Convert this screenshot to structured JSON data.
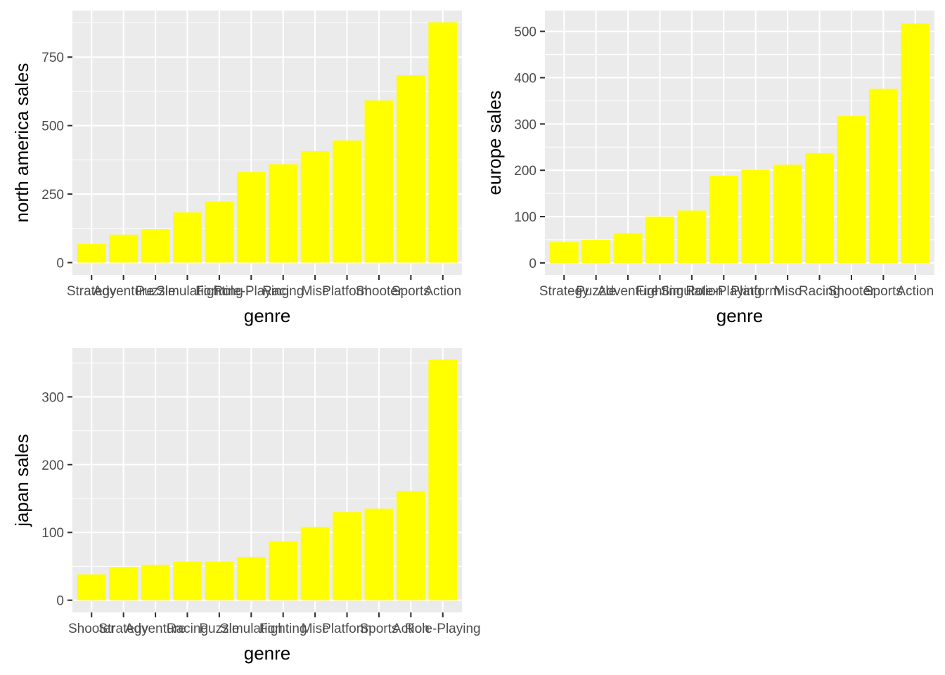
{
  "chart_data": [
    {
      "type": "bar",
      "ylabel": "north america sales",
      "xlabel": "genre",
      "categories": [
        "Strategy",
        "Adventure",
        "Puzzle",
        "Simulation",
        "Fighting",
        "Role-Playing",
        "Racing",
        "Misc",
        "Platform",
        "Shooter",
        "Sports",
        "Action"
      ],
      "values": [
        68,
        102,
        122,
        183,
        223,
        330,
        359,
        407,
        446,
        592,
        684,
        877
      ],
      "ylim": [
        -45,
        920
      ],
      "yticks": [
        0,
        250,
        500,
        750
      ],
      "ytick_labels": [
        "0",
        "250",
        "500",
        "750"
      ],
      "color": "#ffff00",
      "panel_color": "#ebebeb",
      "grid": true
    },
    {
      "type": "bar",
      "ylabel": "europe sales",
      "xlabel": "genre",
      "categories": [
        "Strategy",
        "Puzzle",
        "Adventure",
        "Fighting",
        "Simulation",
        "Role-Playing",
        "Platform",
        "Misc",
        "Racing",
        "Shooter",
        "Sports",
        "Action"
      ],
      "values": [
        45,
        50,
        64,
        100,
        113,
        188,
        201,
        212,
        237,
        317,
        376,
        517
      ],
      "ylim": [
        -26,
        545
      ],
      "yticks": [
        0,
        100,
        200,
        300,
        400,
        500
      ],
      "ytick_labels": [
        "0",
        "100",
        "200",
        "300",
        "400",
        "500"
      ],
      "color": "#ffff00",
      "panel_color": "#ebebeb",
      "grid": true
    },
    {
      "type": "bar",
      "ylabel": "japan sales",
      "xlabel": "genre",
      "categories": [
        "Shooter",
        "Strategy",
        "Adventure",
        "Racing",
        "Puzzle",
        "Simulation",
        "Fighting",
        "Misc",
        "Platform",
        "Sports",
        "Action",
        "Role-Playing"
      ],
      "values": [
        38,
        49,
        52,
        57,
        57,
        64,
        87,
        108,
        130,
        135,
        161,
        355
      ],
      "ylim": [
        -18,
        372
      ],
      "yticks": [
        0,
        100,
        200,
        300
      ],
      "ytick_labels": [
        "0",
        "100",
        "200",
        "300"
      ],
      "color": "#ffff00",
      "panel_color": "#ebebeb",
      "grid": true
    }
  ]
}
